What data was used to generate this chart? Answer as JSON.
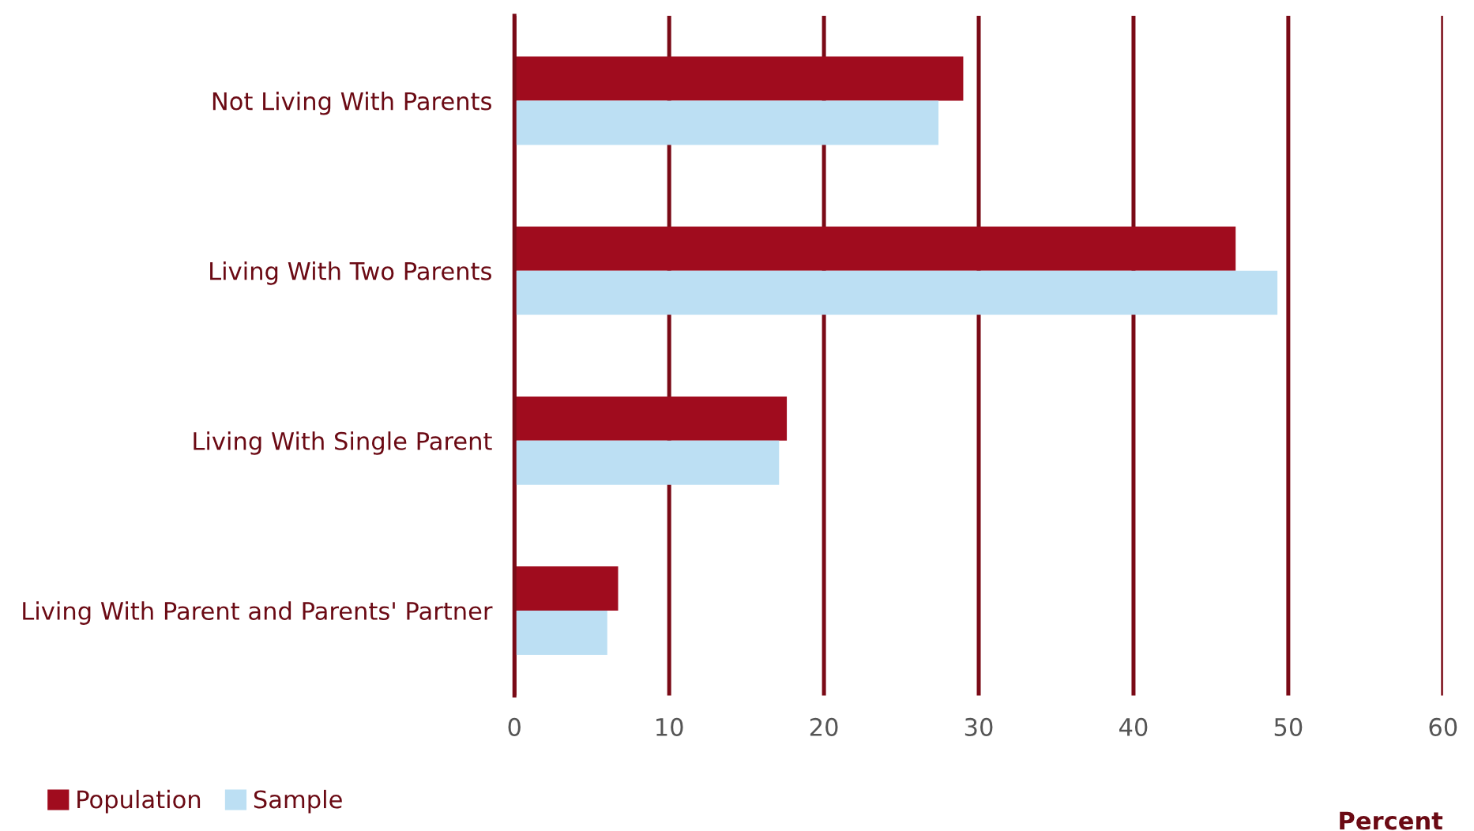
{
  "chart_data": {
    "type": "bar",
    "orientation": "horizontal",
    "xlabel": "Percent",
    "categories": [
      "Not Living With Parents",
      "Living With Two Parents",
      "Living With Single Parent",
      "Living With Parent and Parents' Partner"
    ],
    "series": [
      {
        "name": "Population",
        "color": "#a00c1e",
        "values": [
          29.0,
          46.6,
          17.6,
          6.7
        ]
      },
      {
        "name": "Sample",
        "color": "#bcdff3",
        "values": [
          27.4,
          49.3,
          17.1,
          6.0
        ]
      }
    ],
    "xlim": [
      0,
      60
    ],
    "xticks": [
      0,
      10,
      20,
      30,
      40,
      50,
      60
    ],
    "grid": "x",
    "legend": "bottom left"
  }
}
